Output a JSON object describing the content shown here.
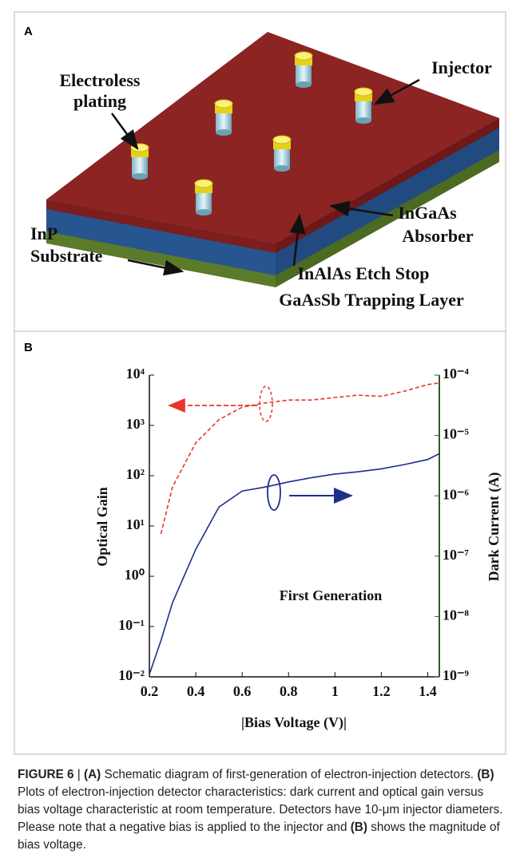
{
  "panel_a": {
    "label": "A",
    "injector": "Injector",
    "plating": [
      "Electroless",
      "plating"
    ],
    "absorber": [
      "InGaAs",
      "Absorber"
    ],
    "substrate": [
      "InP",
      "Substrate"
    ],
    "stop": [
      "InAlAs Etch Stop",
      "GaAsSb Trapping Layer"
    ]
  },
  "chart_data": {
    "type": "line",
    "panel_label": "B",
    "xlabel": "|Bias Voltage (V)|",
    "ylabel": "Optical Gain",
    "y2label": "Dark Current (A)",
    "annotations": [
      "First Generation"
    ],
    "x": [
      0.2,
      0.25,
      0.3,
      0.4,
      0.5,
      0.6,
      0.7,
      0.8,
      0.9,
      1.0,
      1.1,
      1.2,
      1.3,
      1.4,
      1.45
    ],
    "xlim": [
      0.2,
      1.45
    ],
    "xticks": [
      0.2,
      0.4,
      0.6,
      0.8,
      1,
      1.2,
      1.4
    ],
    "ylog": true,
    "ylim": [
      0.01,
      10000
    ],
    "yticks": [
      {
        "value": 0.01,
        "label": "10⁻²"
      },
      {
        "value": 0.1,
        "label": "10⁻¹"
      },
      {
        "value": 1,
        "label": "10⁰"
      },
      {
        "value": 10,
        "label": "10¹"
      },
      {
        "value": 100,
        "label": "10²"
      },
      {
        "value": 1000,
        "label": "10³"
      },
      {
        "value": 10000,
        "label": "10⁴"
      }
    ],
    "y2log": true,
    "y2lim": [
      1e-09,
      0.0001
    ],
    "y2ticks": [
      {
        "value": 1e-09,
        "label": "10⁻⁹"
      },
      {
        "value": 1e-08,
        "label": "10⁻⁸"
      },
      {
        "value": 1e-07,
        "label": "10⁻⁷"
      },
      {
        "value": 1e-06,
        "label": "10⁻⁶"
      },
      {
        "value": 1e-05,
        "label": "10⁻⁵"
      },
      {
        "value": 0.0001,
        "label": "10⁻⁴"
      }
    ],
    "series": [
      {
        "color": "#e8352b",
        "dash": true,
        "values": [
          null,
          7,
          60,
          450,
          1300,
          2300,
          2800,
          3200,
          3200,
          3600,
          4000,
          3800,
          4800,
          6500,
          7000
        ]
      },
      {
        "color": "#1f2d8c",
        "axis": "y2",
        "values": [
          1.1e-09,
          4e-09,
          1.7e-08,
          1.3e-07,
          6.5e-07,
          1.2e-06,
          1.4e-06,
          1.7e-06,
          2e-06,
          2.3e-06,
          2.5e-06,
          2.8e-06,
          3.3e-06,
          4e-06,
          5e-06
        ]
      }
    ]
  },
  "caption": {
    "runs": [
      {
        "text": "FIGURE 6",
        "bold": true
      },
      {
        "text": " | ",
        "bold": false
      },
      {
        "text": "(A)",
        "bold": true
      },
      {
        "text": " Schematic diagram of first-generation of electron-injection detectors. ",
        "bold": false
      },
      {
        "text": "(B)",
        "bold": true
      },
      {
        "text": " Plots of electron-injection detector characteristics: dark current and optical gain versus bias voltage characteristic at room temperature. Detectors have 10-μm injector diameters. Please note that a negative bias is applied to the injector and ",
        "bold": false
      },
      {
        "text": "(B)",
        "bold": true
      },
      {
        "text": " shows the magnitude of bias voltage.",
        "bold": false
      }
    ]
  }
}
